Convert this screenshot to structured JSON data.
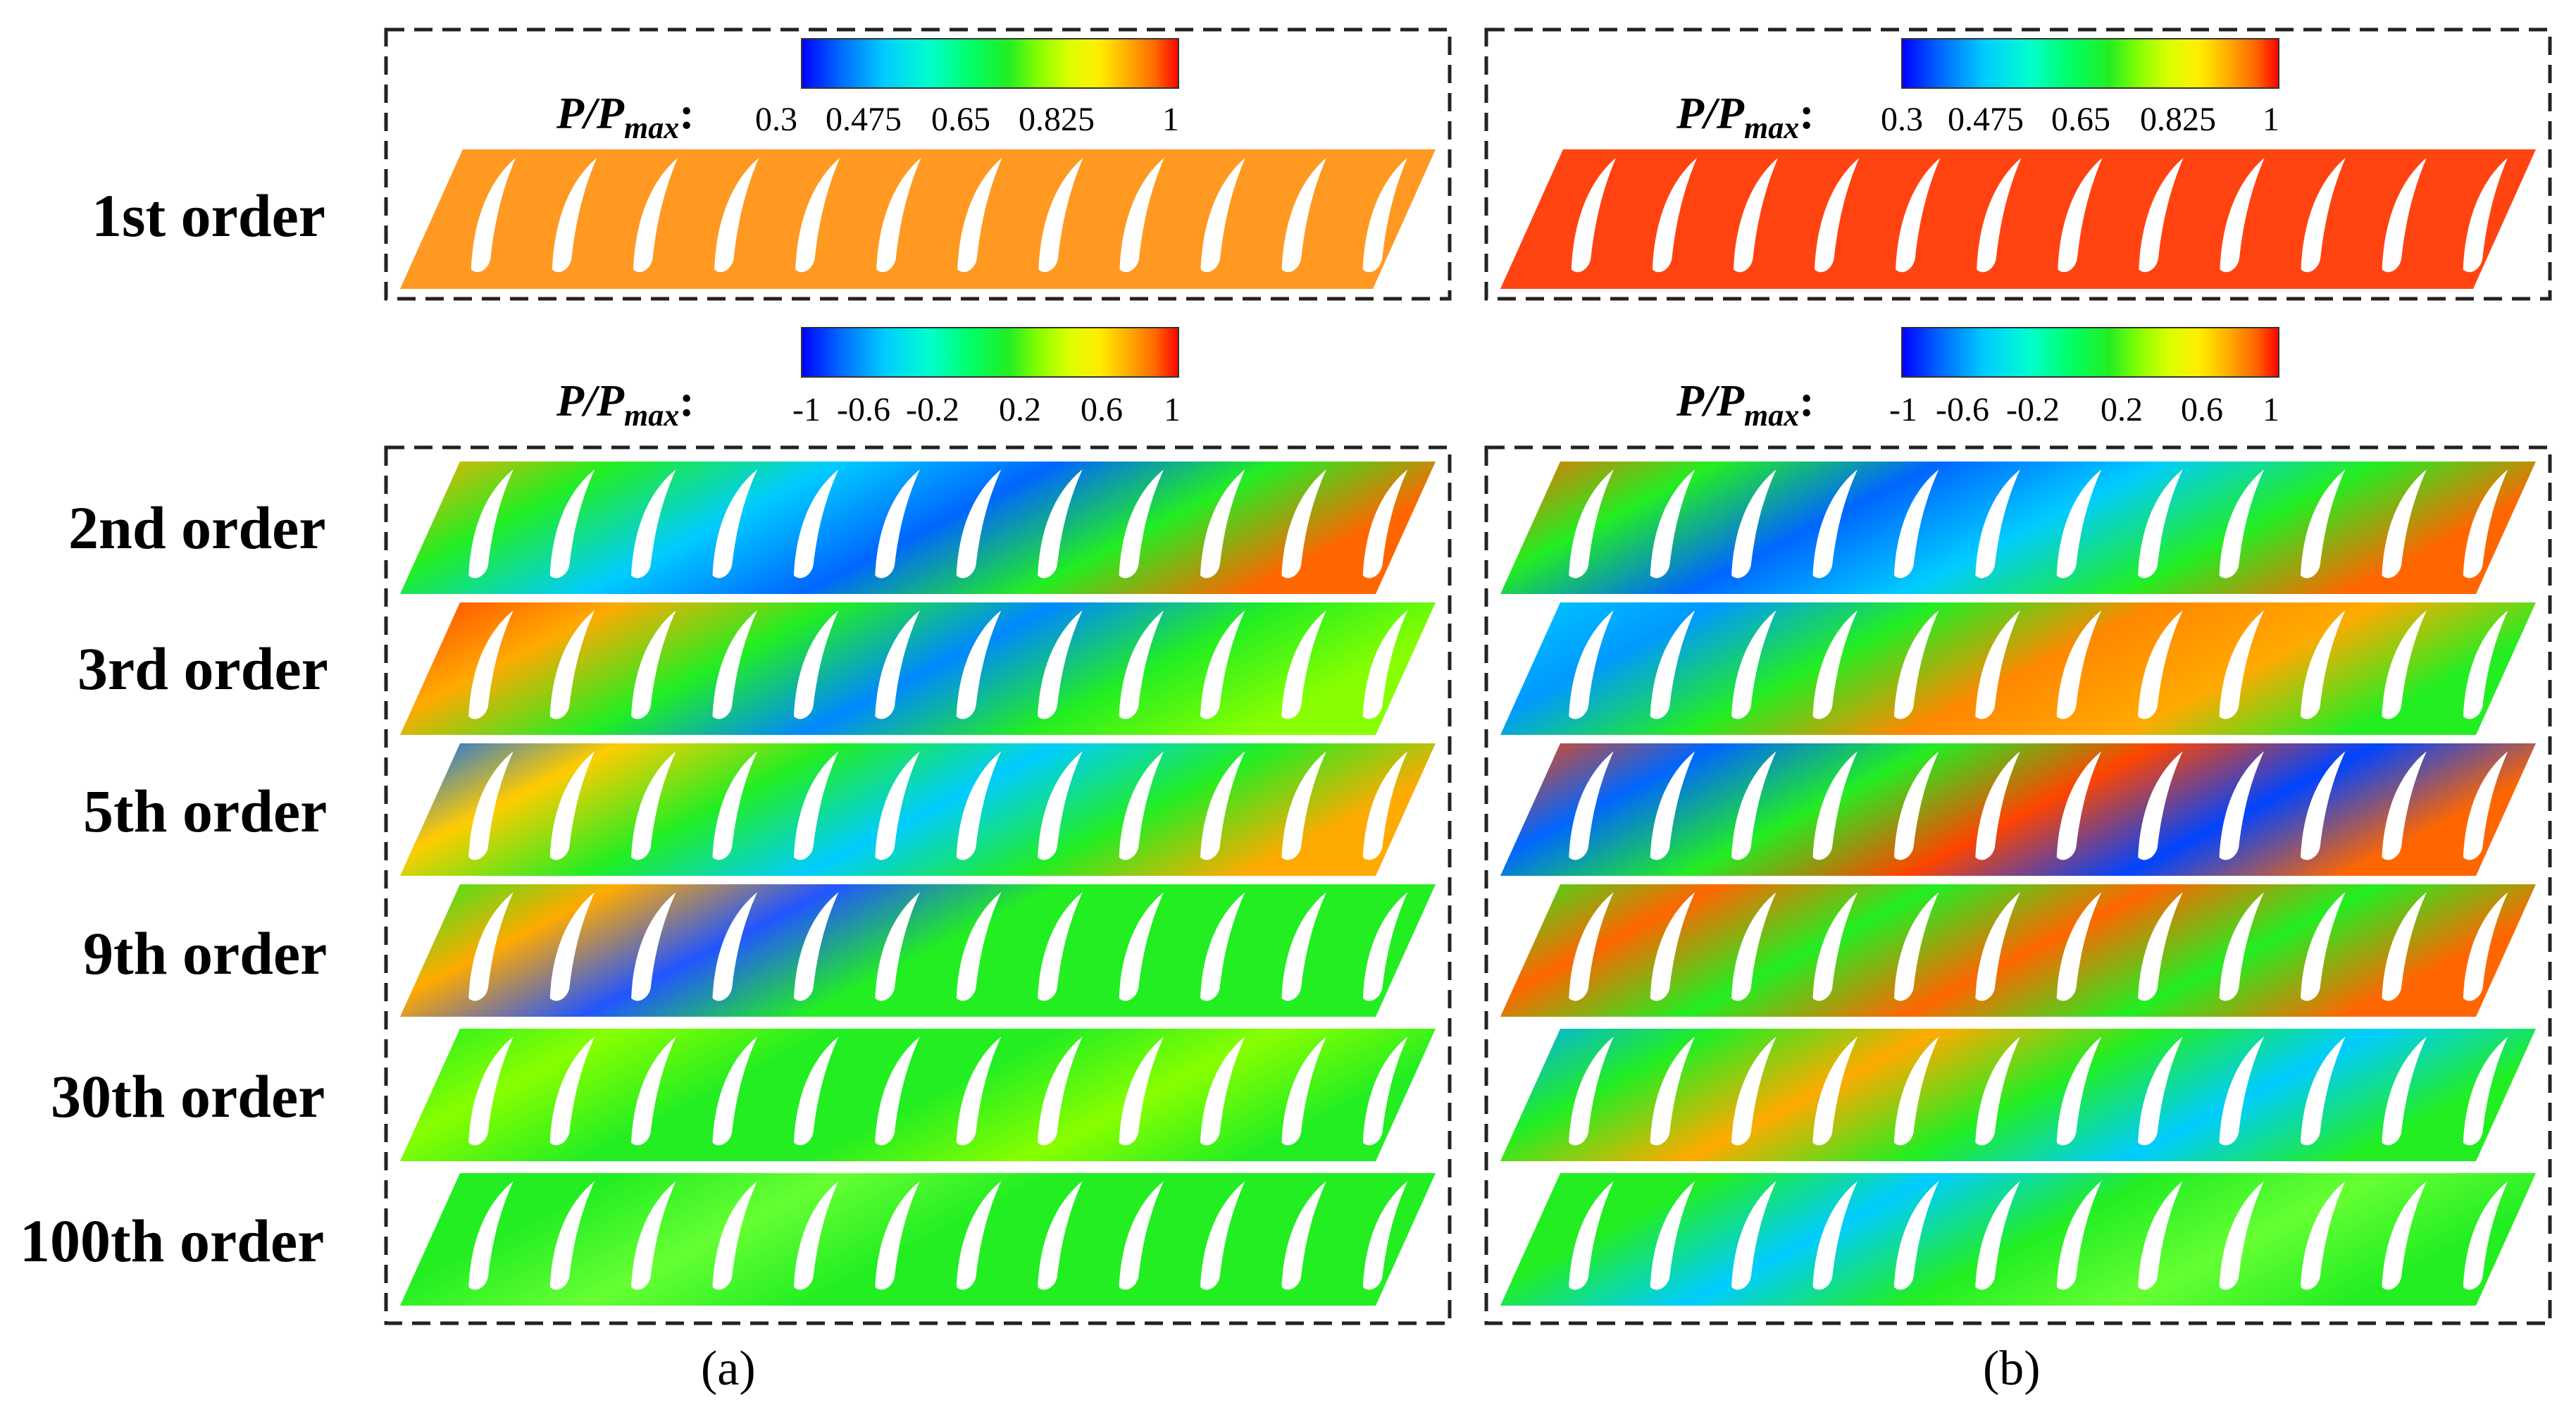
{
  "figure": {
    "row_labels": [
      "1st order",
      "2nd order",
      "3rd order",
      "5th order",
      "9th order",
      "30th order",
      "100th order"
    ],
    "panel_labels": [
      "(a)",
      "(b)"
    ],
    "colorbar_label": {
      "main": "P/P",
      "sub": "max",
      "colon": ":"
    },
    "colorbar_top_ticks": [
      "0.3",
      "0.475",
      "0.65",
      "0.825",
      "1"
    ],
    "colorbar_bottom_ticks": [
      "-1",
      "-0.6",
      "-0.2",
      "0.2",
      "0.6",
      "1"
    ],
    "colormap": [
      "#0000ff",
      "#0066ff",
      "#00ccff",
      "#00ffcc",
      "#00ff66",
      "#22ee22",
      "#88ff00",
      "#ddff00",
      "#ffee00",
      "#ffaa00",
      "#ff6600",
      "#ff0000"
    ],
    "blade_count": 12,
    "panel_a": {
      "first_order_fill": "#ff9922",
      "order_patterns": [
        [
          "#ffaa00",
          "#22ee22",
          "#00ccff",
          "#0066ff",
          "#22ee22",
          "#ff6600"
        ],
        [
          "#ff4400",
          "#ffaa00",
          "#22ee22",
          "#0088ff",
          "#22ee22",
          "#88ff00"
        ],
        [
          "#0066ff",
          "#ffcc00",
          "#22ee22",
          "#00ccff",
          "#22ee22",
          "#ffaa00"
        ],
        [
          "#22ee22",
          "#ffaa00",
          "#2255ff",
          "#22ee22",
          "#22ee22",
          "#22ee22"
        ],
        [
          "#22ee22",
          "#88ff00",
          "#22ee22",
          "#22ee22",
          "#88ff00",
          "#22ee22"
        ],
        [
          "#22ee22",
          "#22ee22",
          "#66ff33",
          "#22ee22",
          "#22ee22",
          "#22ee22"
        ]
      ]
    },
    "panel_b": {
      "first_order_fill": "#ff4411",
      "order_patterns": [
        [
          "#ff6600",
          "#22ee22",
          "#0066ff",
          "#00ccff",
          "#22ee22",
          "#ff6600"
        ],
        [
          "#00ccff",
          "#0099ff",
          "#22ee22",
          "#ff8800",
          "#ffaa00",
          "#22ee22"
        ],
        [
          "#ff4400",
          "#0066ff",
          "#22ee22",
          "#ff4400",
          "#0044ff",
          "#ff6600"
        ],
        [
          "#22ee22",
          "#ff6600",
          "#22ee22",
          "#ff6600",
          "#22ee22",
          "#ff6600"
        ],
        [
          "#00aaff",
          "#22ee22",
          "#ffaa00",
          "#22ee22",
          "#00ccff",
          "#22ee22"
        ],
        [
          "#22ee22",
          "#22ee22",
          "#00ccff",
          "#22ee22",
          "#66ff33",
          "#22ee22"
        ]
      ]
    }
  }
}
